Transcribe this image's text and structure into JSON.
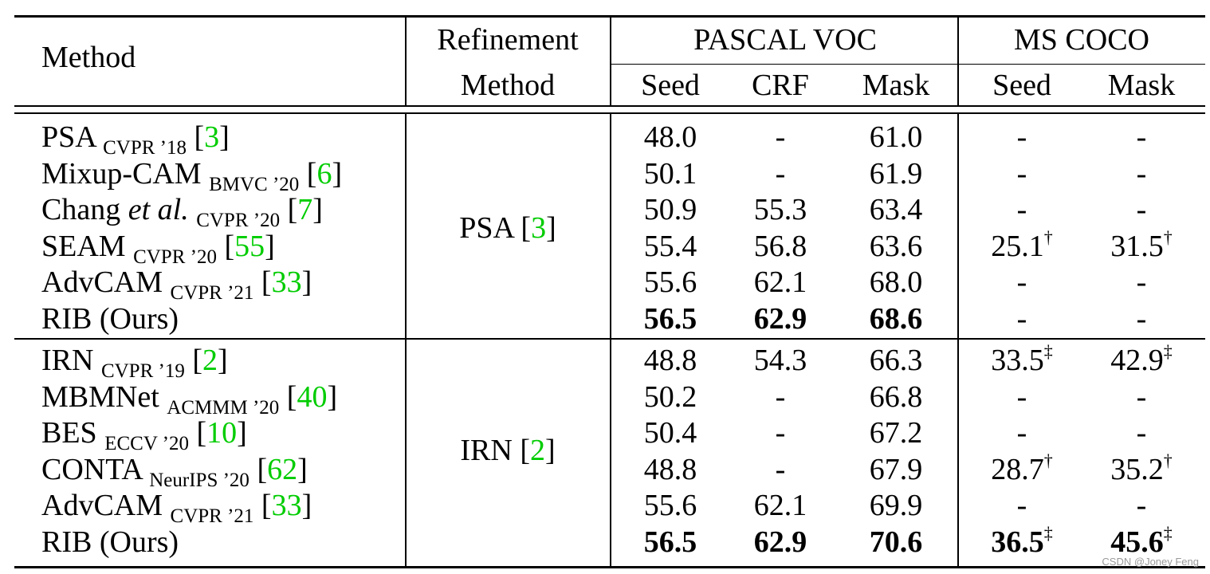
{
  "header": {
    "method": "Method",
    "refinement_line1": "Refinement",
    "refinement_line2": "Method",
    "pascal_voc": "PASCAL VOC",
    "ms_coco": "MS COCO",
    "seed": "Seed",
    "crf": "CRF",
    "mask": "Mask",
    "coco_seed": "Seed",
    "coco_mask": "Mask"
  },
  "groups": [
    {
      "refinement": {
        "name": "PSA",
        "ref": "3"
      },
      "rows": [
        {
          "name": "PSA",
          "venue": "CVPR ’18",
          "ref": "3",
          "seed": "48.0",
          "crf": "-",
          "mask": "61.0",
          "coco_seed": "-",
          "coco_seed_mark": "",
          "coco_mask": "-",
          "coco_mask_mark": "",
          "bold": false
        },
        {
          "name": "Mixup-CAM",
          "venue": "BMVC ’20",
          "ref": "6",
          "seed": "50.1",
          "crf": "-",
          "mask": "61.9",
          "coco_seed": "-",
          "coco_seed_mark": "",
          "coco_mask": "-",
          "coco_mask_mark": "",
          "bold": false
        },
        {
          "name_prefix": "Chang ",
          "name_italic": "et al.",
          "venue": "CVPR ’20",
          "ref": "7",
          "seed": "50.9",
          "crf": "55.3",
          "mask": "63.4",
          "coco_seed": "-",
          "coco_seed_mark": "",
          "coco_mask": "-",
          "coco_mask_mark": "",
          "bold": false
        },
        {
          "name": "SEAM",
          "venue": "CVPR ’20",
          "ref": "55",
          "seed": "55.4",
          "crf": "56.8",
          "mask": "63.6",
          "coco_seed": "25.1",
          "coco_seed_mark": "†",
          "coco_mask": "31.5",
          "coco_mask_mark": "†",
          "bold": false
        },
        {
          "name": "AdvCAM",
          "venue": "CVPR ’21",
          "ref": "33",
          "seed": "55.6",
          "crf": "62.1",
          "mask": "68.0",
          "coco_seed": "-",
          "coco_seed_mark": "",
          "coco_mask": "-",
          "coco_mask_mark": "",
          "bold": false
        },
        {
          "name": "RIB (Ours)",
          "venue": "",
          "ref": "",
          "seed": "56.5",
          "crf": "62.9",
          "mask": "68.6",
          "coco_seed": "-",
          "coco_seed_mark": "",
          "coco_mask": "-",
          "coco_mask_mark": "",
          "bold": true
        }
      ]
    },
    {
      "refinement": {
        "name": "IRN",
        "ref": "2"
      },
      "rows": [
        {
          "name": "IRN",
          "venue": "CVPR ’19",
          "ref": "2",
          "seed": "48.8",
          "crf": "54.3",
          "mask": "66.3",
          "coco_seed": "33.5",
          "coco_seed_mark": "‡",
          "coco_mask": "42.9",
          "coco_mask_mark": "‡",
          "bold": false
        },
        {
          "name": "MBMNet",
          "venue": "ACMMM ’20",
          "ref": "40",
          "seed": "50.2",
          "crf": "-",
          "mask": "66.8",
          "coco_seed": "-",
          "coco_seed_mark": "",
          "coco_mask": "-",
          "coco_mask_mark": "",
          "bold": false
        },
        {
          "name": "BES",
          "venue": "ECCV ’20",
          "ref": "10",
          "seed": "50.4",
          "crf": "-",
          "mask": "67.2",
          "coco_seed": "-",
          "coco_seed_mark": "",
          "coco_mask": "-",
          "coco_mask_mark": "",
          "bold": false
        },
        {
          "name": "CONTA",
          "venue": "NeurIPS ’20",
          "ref": "62",
          "seed": "48.8",
          "crf": "-",
          "mask": "67.9",
          "coco_seed": "28.7",
          "coco_seed_mark": "†",
          "coco_mask": "35.2",
          "coco_mask_mark": "†",
          "bold": false
        },
        {
          "name": "AdvCAM",
          "venue": "CVPR ’21",
          "ref": "33",
          "seed": "55.6",
          "crf": "62.1",
          "mask": "69.9",
          "coco_seed": "-",
          "coco_seed_mark": "",
          "coco_mask": "-",
          "coco_mask_mark": "",
          "bold": false
        },
        {
          "name": "RIB (Ours)",
          "venue": "",
          "ref": "",
          "seed": "56.5",
          "crf": "62.9",
          "mask": "70.6",
          "coco_seed": "36.5",
          "coco_seed_mark": "‡",
          "coco_mask": "45.6",
          "coco_mask_mark": "‡",
          "bold": true
        }
      ]
    }
  ],
  "watermark": "CSDN @Joney Feng"
}
